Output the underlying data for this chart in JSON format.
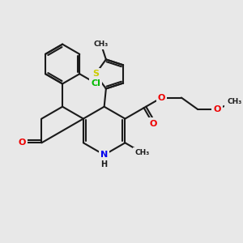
{
  "bg_color": "#e8e8e8",
  "bond_color": "#1a1a1a",
  "bond_width": 1.5,
  "N_color": "#0000ee",
  "O_color": "#ee0000",
  "S_color": "#cccc00",
  "Cl_color": "#00bb00",
  "C_color": "#1a1a1a",
  "xlim": [
    -3.2,
    4.0
  ],
  "ylim": [
    -2.8,
    3.2
  ]
}
